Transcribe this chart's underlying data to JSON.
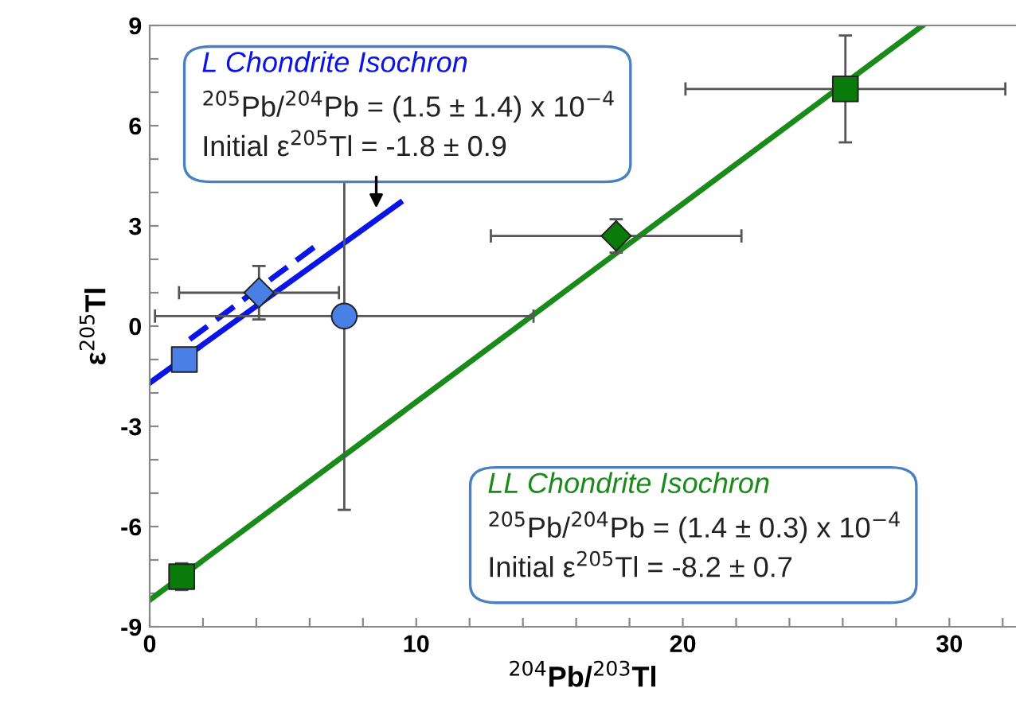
{
  "chart_data": {
    "type": "scatter",
    "xlabel": "$^{204}$Pb/$^{203}$Tl",
    "ylabel": "ε$^{205}$Tl",
    "xlim": [
      0,
      32.5
    ],
    "ylim": [
      -9,
      9
    ],
    "xticks": [
      0,
      {
        "value": 2,
        "label": null
      },
      {
        "value": 4,
        "label": null
      },
      {
        "value": 6,
        "label": null
      },
      {
        "value": 8,
        "label": null
      },
      10,
      {
        "value": 12,
        "label": null
      },
      {
        "value": 14,
        "label": null
      },
      {
        "value": 16,
        "label": null
      },
      {
        "value": 18,
        "label": null
      },
      20,
      {
        "value": 22,
        "label": null
      },
      {
        "value": 24,
        "label": null
      },
      {
        "value": 26,
        "label": null
      },
      {
        "value": 28,
        "label": null
      },
      30,
      {
        "value": 32,
        "label": null
      }
    ],
    "yticks": [
      -9,
      {
        "value": -8,
        "label": null
      },
      {
        "value": -7,
        "label": null
      },
      -6,
      {
        "value": -5,
        "label": null
      },
      {
        "value": -4,
        "label": null
      },
      -3,
      {
        "value": -2,
        "label": null
      },
      {
        "value": -1,
        "label": null
      },
      0,
      {
        "value": 1,
        "label": null
      },
      {
        "value": 2,
        "label": null
      },
      3,
      {
        "value": 4,
        "label": null
      },
      {
        "value": 5,
        "label": null
      },
      6,
      {
        "value": 7,
        "label": null
      },
      {
        "value": 8,
        "label": null
      },
      9
    ],
    "grid": false,
    "legend": false,
    "series": [
      {
        "type": "line",
        "color": "#1a8a1a",
        "x": [
          0,
          29.0
        ],
        "values": [
          -8.2,
          9.0
        ],
        "line_style": "solid",
        "marker": "none"
      },
      {
        "type": "line",
        "color": "#0a14e6",
        "x": [
          0,
          9.4
        ],
        "values": [
          -1.7,
          3.7
        ],
        "line_style": "solid",
        "marker": "none"
      },
      {
        "type": "line",
        "color": "#0a14e6",
        "x": [
          1.5,
          6.4
        ],
        "values": [
          -0.4,
          2.5
        ],
        "line_style": "dashed",
        "marker": "none"
      },
      {
        "color": "#4a7fe6",
        "marker": "square",
        "x": [
          1.3
        ],
        "values": [
          -1.0
        ],
        "errors": [
          0.3
        ],
        "xerrors": [
          null
        ]
      },
      {
        "color": "#4a7fe6",
        "marker": "diamond",
        "x": [
          4.1
        ],
        "values": [
          1.0
        ],
        "errors": [
          0.8
        ],
        "xerrors": [
          3.0
        ]
      },
      {
        "color": "#4a7fe6",
        "marker": "circle",
        "x": [
          7.3
        ],
        "values": [
          0.3
        ],
        "errors": [
          5.8
        ],
        "xerrors": [
          7.1
        ]
      },
      {
        "color": "#0a7a0a",
        "marker": "square",
        "x": [
          1.2
        ],
        "values": [
          -7.5
        ],
        "errors": [
          0.4
        ],
        "xerrors": [
          null
        ]
      },
      {
        "color": "#0a7a0a",
        "marker": "diamond",
        "x": [
          17.5
        ],
        "values": [
          2.7
        ],
        "errors": [
          0.5
        ],
        "xerrors": [
          4.7
        ]
      },
      {
        "color": "#0a7a0a",
        "marker": "square",
        "x": [
          26.1
        ],
        "values": [
          7.1
        ],
        "errors": [
          1.6
        ],
        "xerrors": [
          6.0
        ]
      }
    ],
    "annotations": [
      "L Chondrite Isochron",
      "$^{205}$Pb/$^{204}$Pb = (1.5 ± 1.4) x 10$^{−4}$",
      "Initial ε$^{205}$Tl = -1.8 ± 0.9",
      "LL Chondrite Isochron",
      "$^{205}$Pb/$^{204}$Pb = (1.4 ± 0.3) x 10$^{−4}$",
      "Initial ε$^{205}$Tl = -8.2 ± 0.7"
    ]
  }
}
